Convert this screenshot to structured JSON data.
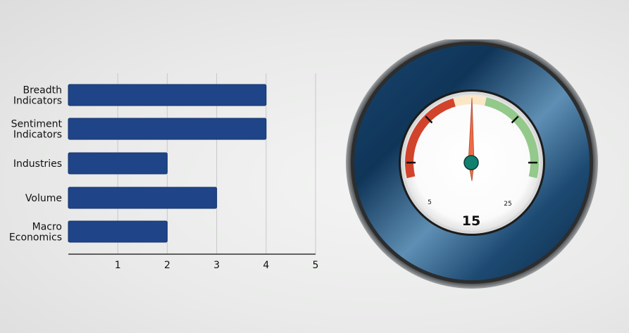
{
  "chart_data": [
    {
      "type": "bar",
      "orientation": "horizontal",
      "categories": [
        [
          "Breadth",
          "Indicators"
        ],
        [
          "Sentiment",
          "Indicators"
        ],
        [
          "Industries"
        ],
        [
          "Volume"
        ],
        [
          "Macro",
          "Economics"
        ]
      ],
      "values": [
        4,
        4,
        2,
        3,
        2
      ],
      "xlim": [
        0,
        5
      ],
      "xticks": [
        "1",
        "2",
        "3",
        "4",
        "5"
      ],
      "grid": "vertical",
      "title": "",
      "xlabel": "",
      "ylabel": "",
      "bar_color": "#1f4488"
    },
    {
      "type": "gauge",
      "value": "15",
      "tick_labels": [
        "5",
        "25"
      ],
      "range": [
        0,
        30
      ],
      "needle_value": 15,
      "bands": [
        {
          "from": 3.5,
          "to": 13.2,
          "color": "#d2432b"
        },
        {
          "from": 13.2,
          "to": 16.4,
          "color": "#fbe6c6"
        },
        {
          "from": 16.4,
          "to": 26.5,
          "color": "#93c98a"
        }
      ],
      "needle_color": "#ef6b45",
      "hub_color": "#11806f"
    }
  ]
}
